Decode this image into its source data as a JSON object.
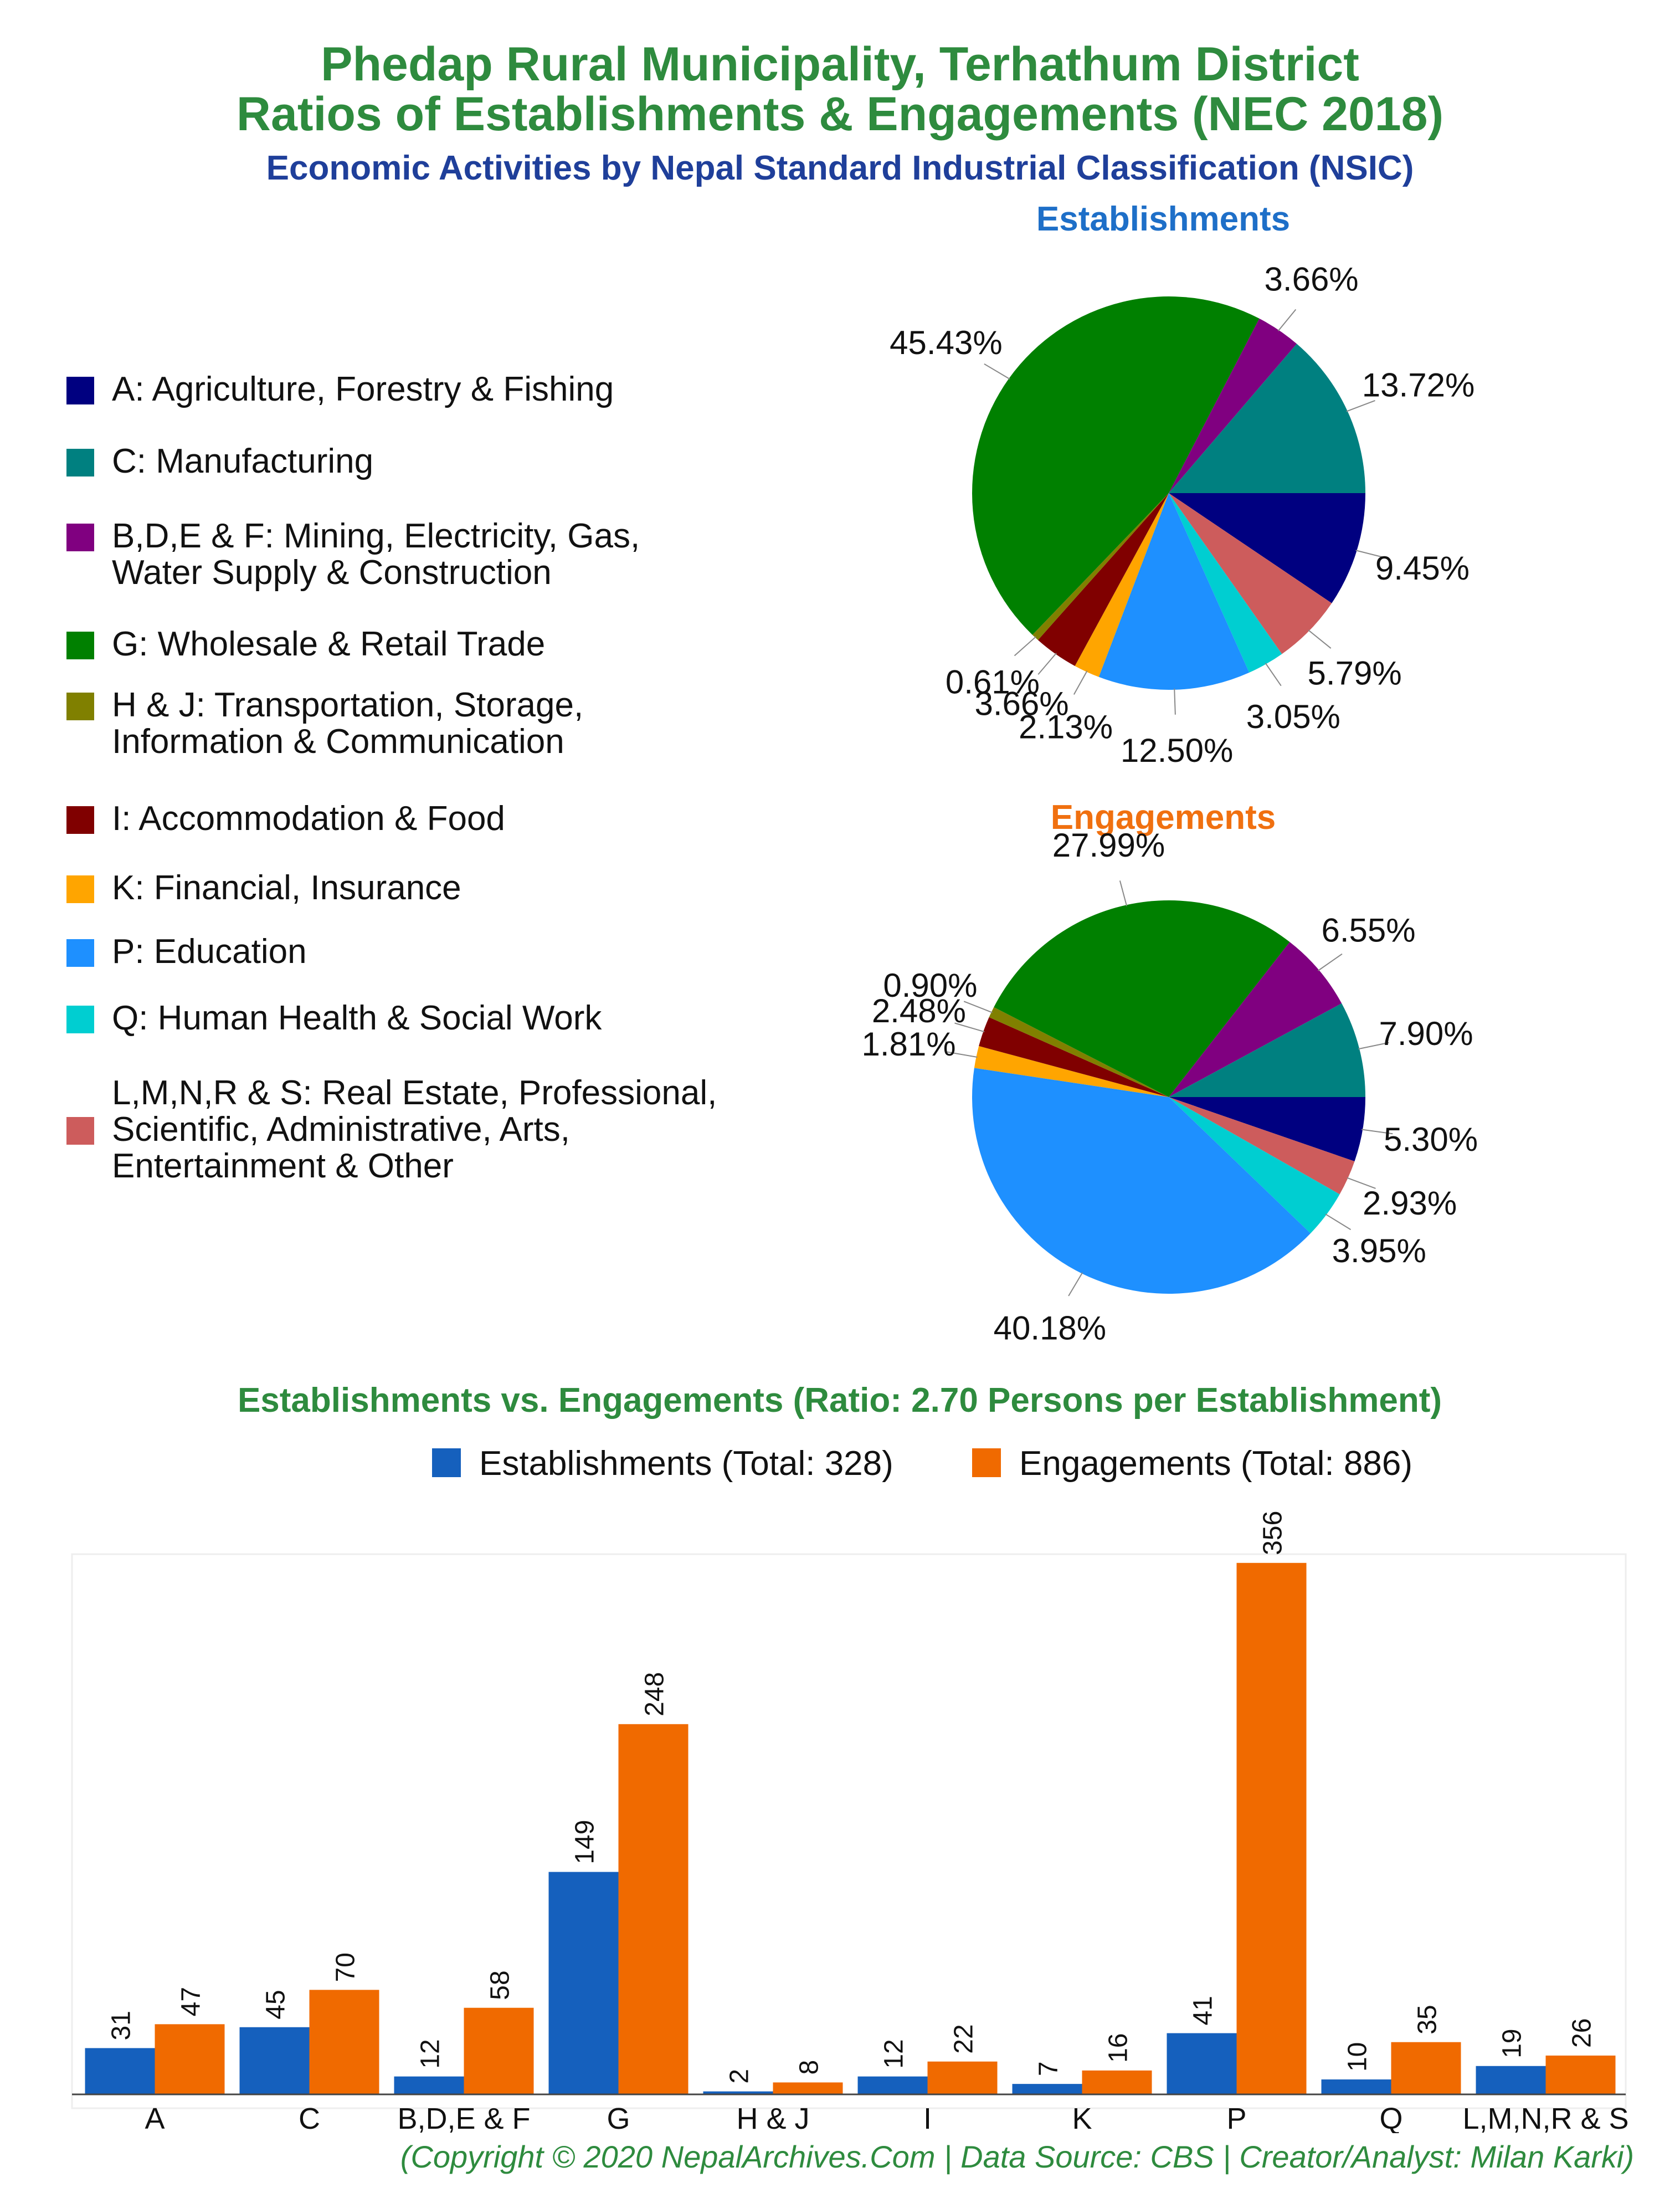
{
  "header": {
    "title_line1": "Phedap Rural Municipality, Terhathum District",
    "title_line2": "Ratios of Establishments & Engagements (NEC 2018)",
    "subtitle": "Economic Activities by Nepal Standard Industrial Classification (NSIC)"
  },
  "legend": [
    {
      "label_line1": "A: Agriculture, Forestry & Fishing",
      "label_line2": "",
      "color": "#000080"
    },
    {
      "label_line1": "C: Manufacturing",
      "label_line2": "",
      "color": "#008080"
    },
    {
      "label_line1": "B,D,E & F: Mining, Electricity, Gas,",
      "label_line2": "Water Supply & Construction",
      "color": "#800080"
    },
    {
      "label_line1": "G: Wholesale & Retail Trade",
      "label_line2": "",
      "color": "#008000"
    },
    {
      "label_line1": "H & J: Transportation, Storage,",
      "label_line2": "Information & Communication",
      "color": "#808000"
    },
    {
      "label_line1": "I: Accommodation & Food",
      "label_line2": "",
      "color": "#800000"
    },
    {
      "label_line1": "K: Financial, Insurance",
      "label_line2": "",
      "color": "#ffa500"
    },
    {
      "label_line1": "P: Education",
      "label_line2": "",
      "color": "#1e90ff"
    },
    {
      "label_line1": "Q: Human Health & Social Work",
      "label_line2": "",
      "color": "#00ced1"
    },
    {
      "label_line1": "L,M,N,R & S: Real Estate, Professional,",
      "label_line2": "Scientific, Administrative, Arts,",
      "label_line3": "Entertainment & Other",
      "color": "#cd5c5c"
    }
  ],
  "bar_section": {
    "title": "Establishments vs. Engagements (Ratio: 2.70 Persons per Establishment)",
    "legend_establishments": "Establishments (Total: 328)",
    "legend_engagements": "Engagements (Total: 886)"
  },
  "footer": "(Copyright © 2020 NepalArchives.Com | Data Source: CBS | Creator/Analyst: Milan Karki)",
  "chart_data": [
    {
      "type": "pie",
      "title": "Establishments",
      "title_color": "#1e6fc8",
      "slices": [
        {
          "category": "A",
          "value": 9.45,
          "label": "9.45%",
          "color": "#000080"
        },
        {
          "category": "L,M,N,R & S",
          "value": 5.79,
          "label": "5.79%",
          "color": "#cd5c5c"
        },
        {
          "category": "Q",
          "value": 3.05,
          "label": "3.05%",
          "color": "#00ced1"
        },
        {
          "category": "P",
          "value": 12.5,
          "label": "12.50%",
          "color": "#1e90ff"
        },
        {
          "category": "K",
          "value": 2.13,
          "label": "2.13%",
          "color": "#ffa500"
        },
        {
          "category": "I",
          "value": 3.66,
          "label": "3.66%",
          "color": "#800000"
        },
        {
          "category": "H & J",
          "value": 0.61,
          "label": "0.61%",
          "color": "#808000"
        },
        {
          "category": "G",
          "value": 45.43,
          "label": "45.43%",
          "color": "#008000"
        },
        {
          "category": "B,D,E & F",
          "value": 3.66,
          "label": "3.66%",
          "color": "#800080"
        },
        {
          "category": "C",
          "value": 13.72,
          "label": "13.72%",
          "color": "#008080"
        }
      ]
    },
    {
      "type": "pie",
      "title": "Engagements",
      "title_color": "#f07010",
      "slices": [
        {
          "category": "A",
          "value": 5.3,
          "label": "5.30%",
          "color": "#000080"
        },
        {
          "category": "L,M,N,R & S",
          "value": 2.93,
          "label": "2.93%",
          "color": "#cd5c5c"
        },
        {
          "category": "Q",
          "value": 3.95,
          "label": "3.95%",
          "color": "#00ced1"
        },
        {
          "category": "P",
          "value": 40.18,
          "label": "40.18%",
          "color": "#1e90ff"
        },
        {
          "category": "K",
          "value": 1.81,
          "label": "1.81%",
          "color": "#ffa500"
        },
        {
          "category": "I",
          "value": 2.48,
          "label": "2.48%",
          "color": "#800000"
        },
        {
          "category": "H & J",
          "value": 0.9,
          "label": "0.90%",
          "color": "#808000"
        },
        {
          "category": "G",
          "value": 27.99,
          "label": "27.99%",
          "color": "#008000"
        },
        {
          "category": "B,D,E & F",
          "value": 6.55,
          "label": "6.55%",
          "color": "#800080"
        },
        {
          "category": "C",
          "value": 7.9,
          "label": "7.90%",
          "color": "#008080"
        }
      ]
    },
    {
      "type": "bar",
      "categories": [
        "A",
        "C",
        "B,D,E & F",
        "G",
        "H & J",
        "I",
        "K",
        "P",
        "Q",
        "L,M,N,R & S"
      ],
      "series": [
        {
          "name": "Establishments (Total: 328)",
          "values": [
            31,
            45,
            12,
            149,
            2,
            12,
            7,
            41,
            10,
            19
          ],
          "color": "#1560bd"
        },
        {
          "name": "Engagements (Total: 886)",
          "values": [
            47,
            70,
            58,
            248,
            8,
            22,
            16,
            356,
            35,
            26
          ],
          "color": "#f06a00"
        }
      ],
      "ylim": [
        0,
        360
      ],
      "grid": false,
      "legend": "top"
    }
  ]
}
